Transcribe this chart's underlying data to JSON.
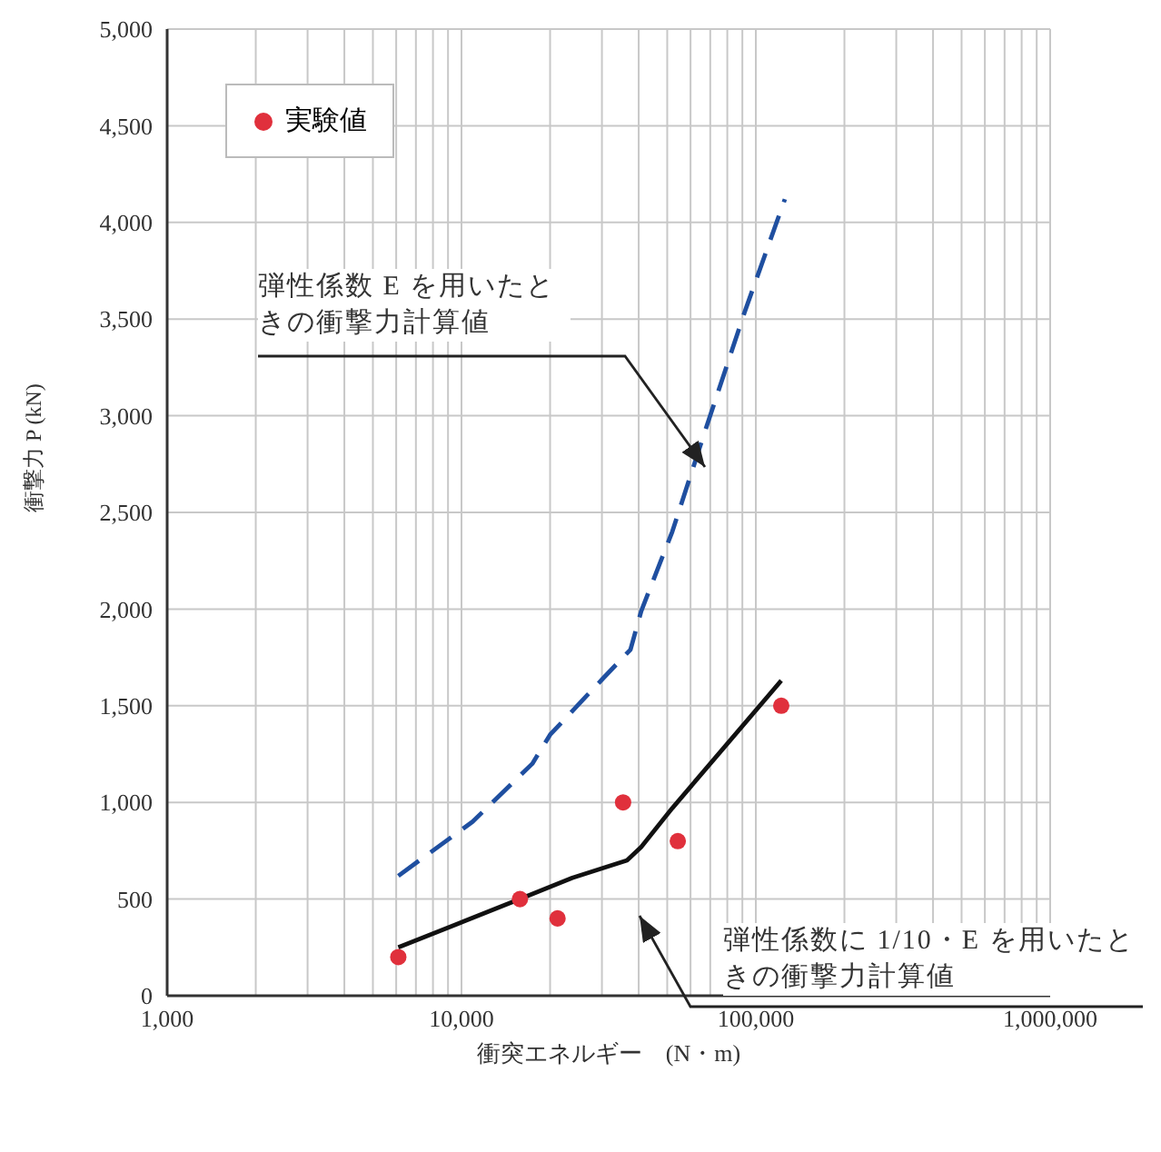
{
  "chart_data": {
    "type": "line",
    "xlabel": "衝突エネルギー　(N・m)",
    "ylabel": "衝撃力 P (kN)",
    "log": "x",
    "grid": true,
    "legend": "top left",
    "xlim": [
      1000,
      1000000
    ],
    "xticks": [
      {
        "value": 1000,
        "label": "1,000"
      },
      {
        "value": 2000,
        "label": null
      },
      {
        "value": 3000,
        "label": null
      },
      {
        "value": 4000,
        "label": null
      },
      {
        "value": 5000,
        "label": null
      },
      {
        "value": 6000,
        "label": null
      },
      {
        "value": 7000,
        "label": null
      },
      {
        "value": 8000,
        "label": null
      },
      {
        "value": 9000,
        "label": null
      },
      {
        "value": 10000,
        "label": "10,000"
      },
      {
        "value": 20000,
        "label": null
      },
      {
        "value": 30000,
        "label": null
      },
      {
        "value": 40000,
        "label": null
      },
      {
        "value": 50000,
        "label": null
      },
      {
        "value": 60000,
        "label": null
      },
      {
        "value": 70000,
        "label": null
      },
      {
        "value": 80000,
        "label": null
      },
      {
        "value": 90000,
        "label": null
      },
      {
        "value": 100000,
        "label": "100,000"
      },
      {
        "value": 200000,
        "label": null
      },
      {
        "value": 300000,
        "label": null
      },
      {
        "value": 400000,
        "label": null
      },
      {
        "value": 500000,
        "label": null
      },
      {
        "value": 600000,
        "label": null
      },
      {
        "value": 700000,
        "label": null
      },
      {
        "value": 800000,
        "label": null
      },
      {
        "value": 900000,
        "label": null
      },
      {
        "value": 1000000,
        "label": "1,000,000"
      }
    ],
    "ylim": [
      0,
      5000
    ],
    "yticks": [
      0,
      {
        "value": 500,
        "label": "500"
      },
      {
        "value": 1000,
        "label": "1,000"
      },
      {
        "value": 1500,
        "label": "1,500"
      },
      {
        "value": 2000,
        "label": "2,000"
      },
      {
        "value": 2500,
        "label": "2,500"
      },
      {
        "value": 3000,
        "label": "3,000"
      },
      {
        "value": 3500,
        "label": "3,500"
      },
      {
        "value": 4000,
        "label": "4,000"
      },
      {
        "value": 4500,
        "label": "4,500"
      },
      {
        "value": 5000,
        "label": "5,000"
      }
    ],
    "series": [
      {
        "name": "実験値",
        "type": "scatter",
        "color": "#e0303c",
        "marker": "circle",
        "x": [
          6100,
          15800,
          21200,
          35400,
          54300,
          122000
        ],
        "values": [
          200,
          500,
          400,
          1000,
          800,
          1500
        ]
      },
      {
        "color": "#1f4fa0",
        "line_style": "dashed",
        "marker": "none",
        "x": [
          6100,
          10900,
          17400,
          20000,
          30200,
          37500,
          40800,
          52000,
          67200,
          91800,
          125500
        ],
        "values": [
          620,
          900,
          1200,
          1350,
          1640,
          1790,
          1990,
          2400,
          2920,
          3540,
          4120
        ]
      },
      {
        "color": "#111111",
        "line_style": "solid",
        "marker": "none",
        "x": [
          6100,
          15800,
          23800,
          36500,
          40800,
          52000,
          122000
        ],
        "values": [
          250,
          500,
          610,
          700,
          770,
          970,
          1630
        ]
      }
    ],
    "annotations": [
      "弾性係数 E を用いたときの衝撃力計算値",
      "弾性係数に 1/10・E を用いたときの衝撃力計算値"
    ]
  }
}
